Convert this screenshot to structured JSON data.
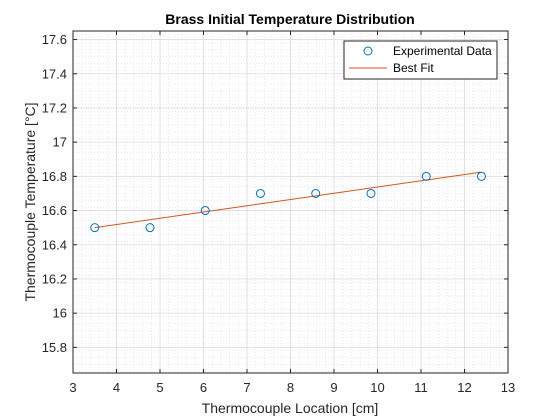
{
  "chart_data": {
    "type": "scatter",
    "title": "Brass Initial Temperature Distribution",
    "xlabel": "Thermocouple Location [cm]",
    "ylabel": "Thermocouple Temperature [°C]",
    "xlim": [
      3,
      13
    ],
    "ylim": [
      15.65,
      17.65
    ],
    "xticks": [
      3,
      4,
      5,
      6,
      7,
      8,
      9,
      10,
      11,
      12,
      13
    ],
    "yticks": [
      15.8,
      16,
      16.2,
      16.4,
      16.6,
      16.8,
      17,
      17.2,
      17.4,
      17.6
    ],
    "xtick_labels": [
      "3",
      "4",
      "5",
      "6",
      "7",
      "8",
      "9",
      "10",
      "11",
      "12",
      "13"
    ],
    "ytick_labels": [
      "15.8",
      "16",
      "16.2",
      "16.4",
      "16.6",
      "16.8",
      "17",
      "17.2",
      "17.4",
      "17.6"
    ],
    "grid": true,
    "minor_grid": true,
    "legend_position": "top-right",
    "series": [
      {
        "name": "Experimental Data",
        "kind": "markers",
        "marker": "circle",
        "color": "#0072BD",
        "x": [
          3.5,
          4.77,
          6.04,
          7.31,
          8.58,
          9.85,
          11.12,
          12.39
        ],
        "y": [
          16.5,
          16.5,
          16.6,
          16.7,
          16.7,
          16.7,
          16.8,
          16.8
        ]
      },
      {
        "name": "Best Fit",
        "kind": "line",
        "color": "#D95319",
        "x": [
          3.5,
          12.39
        ],
        "y": [
          16.5,
          16.825
        ]
      }
    ]
  }
}
